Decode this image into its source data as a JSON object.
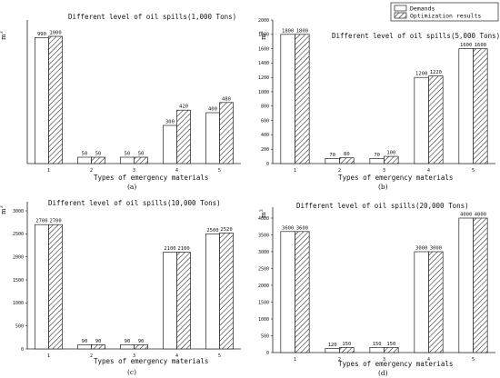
{
  "legend": {
    "demand_label": "Demands",
    "opt_label": "Optimization results"
  },
  "chart_data": [
    {
      "type": "bar",
      "title": "Different level of oil spills(1,000 Tons)",
      "xlabel": "Types of emergency materials",
      "ylabel": "m3",
      "sublabel": "(a)",
      "categories": [
        "1",
        "2",
        "3",
        "4",
        "5"
      ],
      "ylim": [
        0,
        1000
      ],
      "yticks": [],
      "series": [
        {
          "name": "Demands",
          "values": [
            990,
            50,
            50,
            300,
            400
          ]
        },
        {
          "name": "Optimization results",
          "values": [
            1000,
            50,
            50,
            420,
            480
          ]
        }
      ],
      "value_labels": [
        [
          "990",
          "50",
          "50",
          "300",
          "400"
        ],
        [
          "1000",
          "50",
          "50",
          "420",
          "480"
        ]
      ]
    },
    {
      "type": "bar",
      "title": "Different level of oil spills(5,000 Tons)",
      "xlabel": "Types of emergency materials",
      "ylabel": "m3",
      "sublabel": "(b)",
      "categories": [
        "1",
        "2",
        "3",
        "4",
        "5"
      ],
      "ylim": [
        0,
        2000
      ],
      "yticks": [
        "0",
        "200",
        "400",
        "600",
        "800",
        "1000",
        "1200",
        "1400",
        "1600",
        "1800",
        "2000"
      ],
      "series": [
        {
          "name": "Demands",
          "values": [
            1800,
            70,
            70,
            1200,
            1600
          ]
        },
        {
          "name": "Optimization results",
          "values": [
            1800,
            80,
            100,
            1220,
            1600
          ]
        }
      ],
      "value_labels": [
        [
          "1800",
          "70",
          "70",
          "1200",
          "1600"
        ],
        [
          "1800",
          "80",
          "100",
          "1220",
          "1600"
        ]
      ]
    },
    {
      "type": "bar",
      "title": "Different level of oil spills(10,000 Tons)",
      "xlabel": "Types of emergency materials",
      "ylabel": "m3",
      "sublabel": "(c)",
      "categories": [
        "1",
        "2",
        "3",
        "4",
        "5"
      ],
      "ylim": [
        0,
        3000
      ],
      "yticks": [
        "0",
        "500",
        "1000",
        "1500",
        "2000",
        "2500",
        "3000"
      ],
      "series": [
        {
          "name": "Demands",
          "values": [
            2700,
            90,
            90,
            2100,
            2500
          ]
        },
        {
          "name": "Optimization results",
          "values": [
            2700,
            90,
            90,
            2100,
            2520
          ]
        }
      ],
      "value_labels": [
        [
          "2700",
          "90",
          "90",
          "2100",
          "2500"
        ],
        [
          "2700",
          "90",
          "90",
          "2100",
          "2520"
        ]
      ]
    },
    {
      "type": "bar",
      "title": "Different level of oil spills(20,000 Tons)",
      "xlabel": "Types of emergency materials",
      "ylabel": "m3",
      "sublabel": "(d)",
      "categories": [
        "1",
        "2",
        "3",
        "4",
        "5"
      ],
      "ylim": [
        0,
        4000
      ],
      "yticks": [
        "0",
        "500",
        "1000",
        "1500",
        "2000",
        "2500",
        "3000",
        "3500",
        "4000"
      ],
      "series": [
        {
          "name": "Demands",
          "values": [
            3600,
            120,
            150,
            3000,
            4000
          ]
        },
        {
          "name": "Optimization results",
          "values": [
            3600,
            150,
            150,
            3000,
            4000
          ]
        }
      ],
      "value_labels": [
        [
          "3600",
          "120",
          "150",
          "3000",
          "4000"
        ],
        [
          "3600",
          "150",
          "150",
          "3000",
          "4000"
        ]
      ]
    }
  ]
}
